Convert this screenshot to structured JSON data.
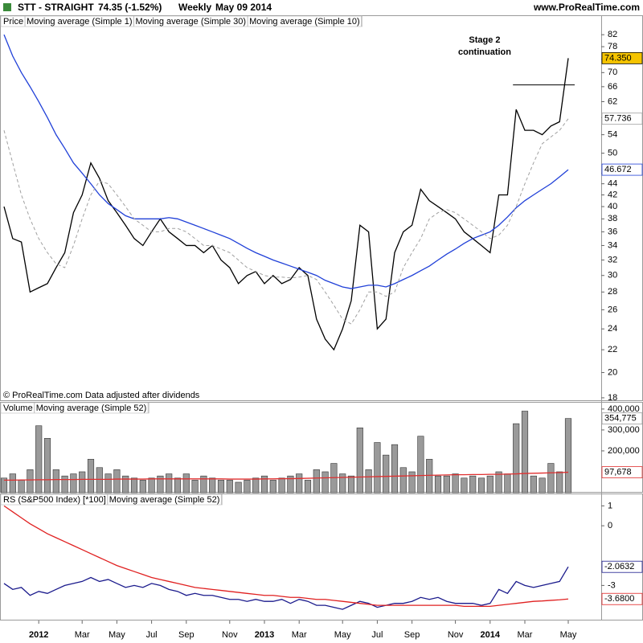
{
  "chart_data": [
    {
      "type": "line",
      "header": {
        "title": "STT - STRAIGHT",
        "quote": "74.35 (-1.52%)",
        "period": "Weekly",
        "date": "May 09 2014",
        "site": "www.ProRealTime.com"
      },
      "legend_label": "Price",
      "note": "© ProRealTime.com  Data adjusted after dividends",
      "annotation": [
        "Stage 2",
        "continuation"
      ],
      "hline": 66.5,
      "log_scale": true,
      "grid": false,
      "ylim": [
        18.3,
        84
      ],
      "yticks": [
        18,
        20,
        22,
        24,
        26,
        28,
        30,
        32,
        34,
        36,
        38,
        40,
        42,
        44,
        46,
        50,
        54,
        58,
        62,
        66,
        70,
        74,
        78,
        82
      ],
      "series": [
        {
          "name": "Moving average (Simple 1)",
          "type": "line",
          "color": "#000000",
          "dash": false,
          "label_fill": "#f5c400",
          "last_label": "74.350",
          "values": [
            40,
            35,
            34.5,
            28,
            28.5,
            29,
            31,
            33,
            39,
            42,
            48,
            45,
            41,
            39,
            37,
            35,
            34,
            36,
            38,
            36,
            35,
            34,
            34,
            33,
            34,
            32,
            31,
            29,
            30,
            30.5,
            29,
            30,
            29,
            29.5,
            31,
            30,
            25,
            23,
            22,
            24,
            27,
            37,
            36,
            24,
            25,
            33,
            36,
            37,
            43,
            41,
            40,
            39,
            38,
            36,
            35,
            34,
            33,
            42,
            42,
            60,
            55,
            55,
            54,
            56,
            57,
            74.35
          ]
        },
        {
          "name": "Moving average (Simple 30)",
          "type": "line",
          "color": "#2040d8",
          "dash": false,
          "label_fill": "#ffffff",
          "last_label": "46.672",
          "values": [
            82,
            75,
            70,
            66,
            62,
            58,
            54,
            51,
            48,
            46,
            44,
            42,
            40.5,
            39.5,
            38.5,
            38,
            38,
            38,
            38,
            38.2,
            38,
            37.5,
            37,
            36.5,
            36,
            35.5,
            35,
            34.3,
            33.6,
            33,
            32.5,
            32,
            31.6,
            31.2,
            30.8,
            30.4,
            30,
            29.4,
            29,
            28.6,
            28.4,
            28.6,
            28.8,
            28.8,
            28.6,
            29,
            29.5,
            30,
            30.6,
            31.2,
            32,
            32.8,
            33.5,
            34.3,
            35,
            35.5,
            36,
            37,
            38.3,
            39.8,
            41,
            42,
            43,
            44,
            45.3,
            46.672
          ]
        },
        {
          "name": "Moving average (Simple 10)",
          "type": "line",
          "color": "#a0a0a0",
          "dash": true,
          "label_fill": "#ffffff",
          "last_label": "57.736",
          "values": [
            55,
            48,
            42,
            38,
            35,
            33,
            31.5,
            31,
            34,
            38,
            42,
            44.5,
            44,
            42,
            40,
            38,
            37,
            36,
            36,
            36.5,
            36.5,
            36,
            35,
            34,
            34,
            33.5,
            33,
            32,
            31,
            30.5,
            30,
            29.8,
            29.8,
            29.7,
            29.8,
            30,
            29.5,
            28,
            26.5,
            25,
            24.5,
            26,
            28,
            28,
            27.5,
            28,
            31,
            33,
            35,
            38,
            39,
            39.5,
            39,
            38,
            37,
            36,
            35,
            35.5,
            37,
            40,
            44,
            48,
            52,
            53.5,
            55,
            57.736
          ]
        }
      ]
    },
    {
      "type": "bar",
      "log_scale": false,
      "grid": false,
      "ylim": [
        0,
        415000
      ],
      "yticks": [
        {
          "value": 200000,
          "label": "200,000"
        },
        {
          "value": 300000,
          "label": "300,000"
        },
        {
          "value": 400000,
          "label": "400,000"
        }
      ],
      "series": [
        {
          "name": "Volume",
          "type": "bar",
          "color": "#9a9a9a",
          "label_fill": "#ffffff",
          "last_label": "354,775",
          "values": [
            70000,
            90000,
            60000,
            110000,
            320000,
            260000,
            110000,
            80000,
            90000,
            100000,
            160000,
            120000,
            90000,
            110000,
            80000,
            70000,
            60000,
            70000,
            80000,
            90000,
            70000,
            90000,
            60000,
            80000,
            70000,
            60000,
            60000,
            50000,
            60000,
            70000,
            80000,
            60000,
            70000,
            80000,
            90000,
            60000,
            110000,
            100000,
            140000,
            90000,
            80000,
            310000,
            110000,
            240000,
            180000,
            230000,
            120000,
            100000,
            270000,
            160000,
            80000,
            80000,
            90000,
            70000,
            80000,
            70000,
            80000,
            100000,
            90000,
            330000,
            390000,
            80000,
            70000,
            140000,
            100000,
            354775
          ]
        },
        {
          "name": "Moving average (Simple 52)",
          "type": "line",
          "color": "#e03030",
          "dash": false,
          "label_fill": "#ffffff",
          "last_label": "97,678",
          "values": [
            60000,
            60000,
            61000,
            61000,
            62000,
            62000,
            63000,
            63000,
            63000,
            64000,
            64000,
            64000,
            64000,
            65000,
            65000,
            65000,
            65000,
            66000,
            66000,
            66000,
            66000,
            66000,
            66000,
            66000,
            66000,
            66000,
            65000,
            65000,
            65000,
            65000,
            66000,
            66000,
            67000,
            67000,
            68000,
            69000,
            70000,
            71000,
            72000,
            73000,
            74000,
            75000,
            76000,
            77000,
            78000,
            79000,
            80000,
            81000,
            82000,
            83000,
            84000,
            85000,
            86000,
            86000,
            87000,
            87000,
            88000,
            88000,
            89000,
            90000,
            92000,
            93000,
            94000,
            95000,
            96000,
            97678
          ]
        }
      ]
    },
    {
      "type": "line",
      "log_scale": false,
      "grid": false,
      "ylim": [
        -4.6,
        1.5
      ],
      "yticks": [
        -3,
        0,
        1
      ],
      "categories": [
        null,
        null,
        null,
        null,
        "2012",
        null,
        null,
        null,
        null,
        "Mar",
        null,
        null,
        null,
        "May",
        null,
        null,
        null,
        "Jul",
        null,
        null,
        null,
        "Sep",
        null,
        null,
        null,
        null,
        "Nov",
        null,
        null,
        null,
        "2013",
        null,
        null,
        null,
        "Mar",
        null,
        null,
        null,
        null,
        "May",
        null,
        null,
        null,
        "Jul",
        null,
        null,
        null,
        "Sep",
        null,
        null,
        null,
        null,
        "Nov",
        null,
        null,
        null,
        "2014",
        null,
        null,
        null,
        "Mar",
        null,
        null,
        null,
        null,
        "May"
      ],
      "series": [
        {
          "name": "RS (S&P500 Index) [*100]",
          "type": "line",
          "color": "#1a1a8c",
          "dash": false,
          "label_fill": "#ffffff",
          "last_label": "-2.0632",
          "values": [
            -2.9,
            -3.2,
            -3.1,
            -3.5,
            -3.3,
            -3.4,
            -3.2,
            -3.0,
            -2.9,
            -2.8,
            -2.6,
            -2.8,
            -2.7,
            -2.9,
            -3.1,
            -3.0,
            -3.1,
            -2.9,
            -3.0,
            -3.2,
            -3.3,
            -3.5,
            -3.4,
            -3.5,
            -3.5,
            -3.6,
            -3.7,
            -3.7,
            -3.8,
            -3.7,
            -3.8,
            -3.8,
            -3.7,
            -3.9,
            -3.7,
            -3.8,
            -4.0,
            -4.0,
            -4.1,
            -4.2,
            -4.0,
            -3.8,
            -3.9,
            -4.1,
            -4.0,
            -3.9,
            -3.9,
            -3.8,
            -3.6,
            -3.7,
            -3.6,
            -3.8,
            -3.9,
            -3.9,
            -3.9,
            -4.0,
            -3.9,
            -3.2,
            -3.4,
            -2.8,
            -3.0,
            -3.1,
            -3.0,
            -2.9,
            -2.8,
            -2.0632
          ]
        },
        {
          "name": "Moving average (Simple 52)",
          "type": "line",
          "color": "#e02020",
          "dash": false,
          "label_fill": "#ffffff",
          "last_label": "-3.6800",
          "values": [
            1.0,
            0.7,
            0.4,
            0.1,
            -0.15,
            -0.4,
            -0.6,
            -0.8,
            -1.0,
            -1.2,
            -1.4,
            -1.6,
            -1.8,
            -2.0,
            -2.15,
            -2.3,
            -2.45,
            -2.6,
            -2.7,
            -2.8,
            -2.9,
            -3.0,
            -3.1,
            -3.15,
            -3.2,
            -3.25,
            -3.3,
            -3.35,
            -3.4,
            -3.45,
            -3.5,
            -3.5,
            -3.55,
            -3.6,
            -3.6,
            -3.65,
            -3.7,
            -3.7,
            -3.75,
            -3.8,
            -3.85,
            -3.9,
            -3.95,
            -4.0,
            -4.0,
            -4.0,
            -4.0,
            -4.0,
            -4.0,
            -4.0,
            -4.0,
            -4.0,
            -4.0,
            -4.05,
            -4.05,
            -4.05,
            -4.05,
            -4.0,
            -3.95,
            -3.9,
            -3.85,
            -3.8,
            -3.78,
            -3.75,
            -3.72,
            -3.68
          ]
        }
      ]
    }
  ]
}
